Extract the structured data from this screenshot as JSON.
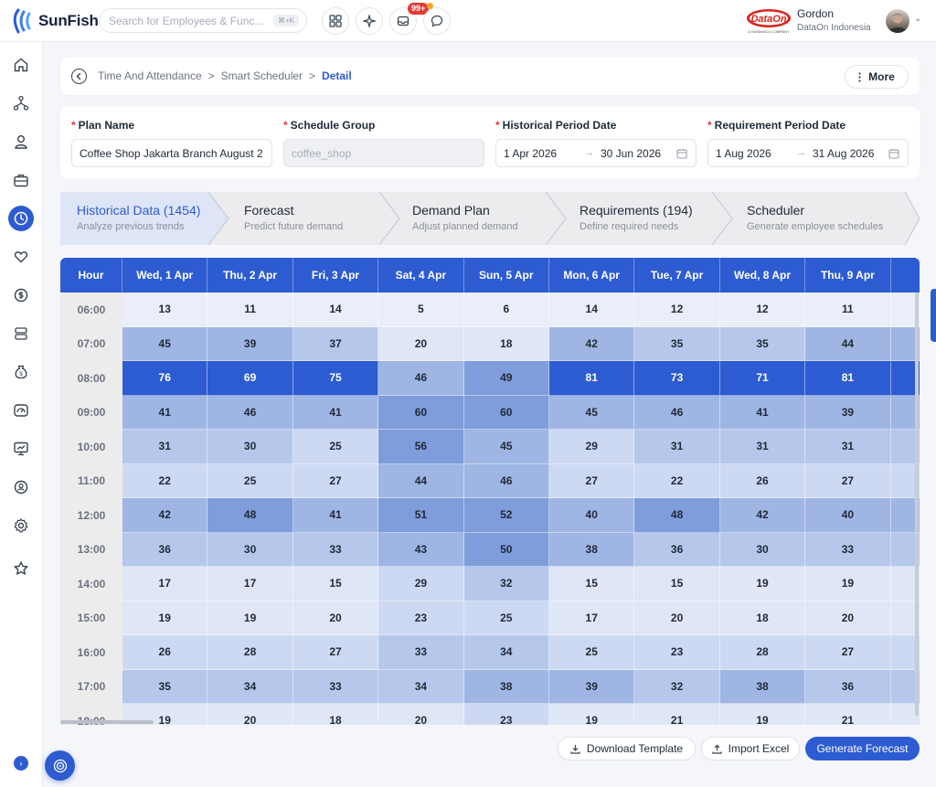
{
  "app": {
    "name": "SunFish"
  },
  "search": {
    "placeholder": "Search for Employees & Func...",
    "shortcut": "⌘+K"
  },
  "notifications": {
    "count": "99+"
  },
  "user": {
    "name": "Gordon",
    "company": "DataOn Indonesia",
    "company_logo": "DataOn",
    "company_logo_sub": "A HUMANICA COMPANY"
  },
  "breadcrumb": {
    "items": [
      "Time And Attendance",
      "Smart Scheduler"
    ],
    "current": "Detail",
    "separator": ">"
  },
  "more_label": "More",
  "form": {
    "plan_name": {
      "label": "Plan Name",
      "value": "Coffee Shop Jakarta Branch August 2"
    },
    "schedule_group": {
      "label": "Schedule Group",
      "value": "coffee_shop"
    },
    "historical_period": {
      "label": "Historical Period Date",
      "from": "1 Apr 2026",
      "to": "30 Jun 2026"
    },
    "requirement_period": {
      "label": "Requirement Period Date",
      "from": "1 Aug 2026",
      "to": "31 Aug 2026"
    }
  },
  "steps": [
    {
      "title": "Historical Data (1454)",
      "subtitle": "Analyze previous trends",
      "active": true
    },
    {
      "title": "Forecast",
      "subtitle": "Predict future demand",
      "active": false
    },
    {
      "title": "Demand Plan",
      "subtitle": "Adjust planned demand",
      "active": false
    },
    {
      "title": "Requirements (194)",
      "subtitle": "Define required needs",
      "active": false
    },
    {
      "title": "Scheduler",
      "subtitle": "Generate employee schedules",
      "active": false
    }
  ],
  "table": {
    "hour_header": "Hour",
    "columns": [
      "Wed, 1 Apr",
      "Thu, 2 Apr",
      "Fri, 3 Apr",
      "Sat, 4 Apr",
      "Sun, 5 Apr",
      "Mon, 6 Apr",
      "Tue, 7 Apr",
      "Wed, 8 Apr",
      "Thu, 9 Apr",
      "F"
    ],
    "rows": [
      {
        "hour": "06:00",
        "values": [
          13,
          11,
          14,
          5,
          6,
          14,
          12,
          12,
          11
        ]
      },
      {
        "hour": "07:00",
        "values": [
          45,
          39,
          37,
          20,
          18,
          42,
          35,
          35,
          44
        ]
      },
      {
        "hour": "08:00",
        "values": [
          76,
          69,
          75,
          46,
          49,
          81,
          73,
          71,
          81
        ]
      },
      {
        "hour": "09:00",
        "values": [
          41,
          46,
          41,
          60,
          60,
          45,
          46,
          41,
          39
        ]
      },
      {
        "hour": "10:00",
        "values": [
          31,
          30,
          25,
          56,
          45,
          29,
          31,
          31,
          31
        ]
      },
      {
        "hour": "11:00",
        "values": [
          22,
          25,
          27,
          44,
          46,
          27,
          22,
          26,
          27
        ]
      },
      {
        "hour": "12:00",
        "values": [
          42,
          48,
          41,
          51,
          52,
          40,
          48,
          42,
          40
        ]
      },
      {
        "hour": "13:00",
        "values": [
          36,
          30,
          33,
          43,
          50,
          38,
          36,
          30,
          33
        ]
      },
      {
        "hour": "14:00",
        "values": [
          17,
          17,
          15,
          29,
          32,
          15,
          15,
          19,
          19
        ]
      },
      {
        "hour": "15:00",
        "values": [
          19,
          19,
          20,
          23,
          25,
          17,
          20,
          18,
          20
        ]
      },
      {
        "hour": "16:00",
        "values": [
          26,
          28,
          27,
          33,
          34,
          25,
          23,
          28,
          27
        ]
      },
      {
        "hour": "17:00",
        "values": [
          35,
          34,
          33,
          34,
          38,
          39,
          32,
          38,
          36
        ]
      },
      {
        "hour": "18:00",
        "values": [
          19,
          20,
          18,
          20,
          23,
          19,
          21,
          19,
          21
        ]
      }
    ],
    "colors": {
      "header": "#2d5bd1",
      "scale": [
        "#eaeef8",
        "#dfe6f6",
        "#cdd9f2",
        "#b5c8ec",
        "#9fb6e4",
        "#7f9cdb",
        "#2d5bd1"
      ]
    }
  },
  "actions": {
    "download_template": "Download Template",
    "import_excel": "Import Excel",
    "generate_forecast": "Generate Forecast"
  },
  "icons": {
    "sidebar": [
      "home-icon",
      "org-chart-icon",
      "person-icon",
      "briefcase-icon",
      "clock-icon",
      "heart-hand-icon",
      "money-cycle-icon",
      "documents-icon",
      "money-bag-icon",
      "dashboard-icon",
      "presentation-icon",
      "search-person-icon",
      "gear-icon",
      "star-icon"
    ]
  }
}
